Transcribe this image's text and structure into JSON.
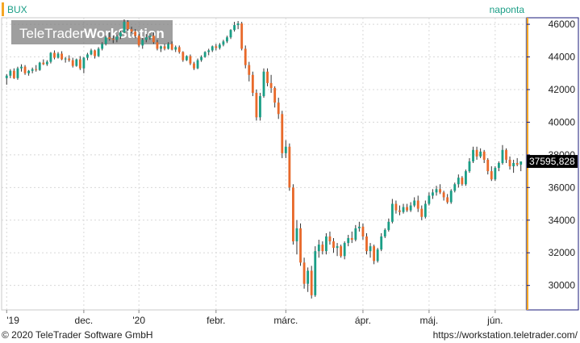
{
  "header": {
    "symbol": "BUX",
    "interval": "naponta"
  },
  "watermark": {
    "part1": "TeleTrader",
    "part2": "WorkStation"
  },
  "price_marker": {
    "label": "37595,828"
  },
  "footer": {
    "copyright": "© 2020 TeleTrader Software GmbH",
    "url": "https://workstation.teletrader.com/"
  },
  "colors": {
    "up": "#1a9e86",
    "down": "#e8692a",
    "wick": "#333333",
    "accent": "#f5a623",
    "axis_frame": "#1a1a7a",
    "marker_bg": "#000000"
  },
  "chart_data": {
    "type": "candlestick",
    "ylim": [
      28500,
      46400
    ],
    "yticks": [
      30000,
      32000,
      34000,
      36000,
      38000,
      40000,
      42000,
      44000,
      46000
    ],
    "ytick_labels": [
      "30000",
      "32000",
      "34000",
      "36000",
      "38000",
      "40000",
      "42000",
      "44000",
      "46000"
    ],
    "xticks": [
      {
        "label": "'19",
        "index": 0
      },
      {
        "label": "dec.",
        "index": 21
      },
      {
        "label": "'20",
        "index": 36
      },
      {
        "label": "febr.",
        "index": 57
      },
      {
        "label": "márc.",
        "index": 76
      },
      {
        "label": "ápr.",
        "index": 97
      },
      {
        "label": "máj.",
        "index": 115
      },
      {
        "label": "jún.",
        "index": 133
      }
    ],
    "grid": true,
    "last_value": 37595.828,
    "ohlc": [
      [
        42700,
        42950,
        42300,
        42850
      ],
      [
        42850,
        43250,
        42700,
        43150
      ],
      [
        43150,
        43300,
        42650,
        42700
      ],
      [
        42700,
        43400,
        42600,
        43300
      ],
      [
        43300,
        43550,
        43100,
        43400
      ],
      [
        43400,
        43500,
        42900,
        43000
      ],
      [
        43000,
        43200,
        42850,
        43150
      ],
      [
        43150,
        43350,
        43000,
        43250
      ],
      [
        43250,
        43500,
        43100,
        43200
      ],
      [
        43200,
        43700,
        43150,
        43650
      ],
      [
        43650,
        43850,
        43500,
        43550
      ],
      [
        43550,
        43800,
        43450,
        43700
      ],
      [
        43700,
        44300,
        43600,
        44250
      ],
      [
        44250,
        44400,
        43850,
        43950
      ],
      [
        43950,
        44300,
        43900,
        44200
      ],
      [
        44200,
        44350,
        43800,
        43850
      ],
      [
        43850,
        44000,
        43650,
        43900
      ],
      [
        43900,
        44100,
        43700,
        43800
      ],
      [
        43800,
        43950,
        43350,
        43450
      ],
      [
        43450,
        43900,
        43400,
        43850
      ],
      [
        43850,
        44050,
        43200,
        43300
      ],
      [
        43300,
        44000,
        43000,
        43950
      ],
      [
        43950,
        44250,
        43800,
        44150
      ],
      [
        44150,
        44500,
        44100,
        44400
      ],
      [
        44400,
        44450,
        43900,
        44050
      ],
      [
        44050,
        44600,
        44000,
        44500
      ],
      [
        44500,
        44900,
        44400,
        44800
      ],
      [
        44800,
        45300,
        44700,
        45200
      ],
      [
        45200,
        45500,
        45000,
        45100
      ],
      [
        45100,
        45300,
        44850,
        45050
      ],
      [
        45050,
        45350,
        44900,
        45250
      ],
      [
        45250,
        45600,
        45100,
        45500
      ],
      [
        45500,
        46300,
        45450,
        46150
      ],
      [
        46150,
        46250,
        45600,
        45700
      ],
      [
        45700,
        45850,
        45450,
        45550
      ],
      [
        45550,
        45700,
        45150,
        45300
      ],
      [
        45300,
        45400,
        44600,
        44700
      ],
      [
        44700,
        45150,
        44500,
        45050
      ],
      [
        45050,
        45400,
        44900,
        45200
      ],
      [
        45200,
        45450,
        45050,
        45300
      ],
      [
        45300,
        45500,
        44800,
        44900
      ],
      [
        44900,
        45050,
        44400,
        44500
      ],
      [
        44500,
        44700,
        44300,
        44650
      ],
      [
        44650,
        44800,
        44400,
        44500
      ],
      [
        44500,
        44900,
        44450,
        44800
      ],
      [
        44800,
        44950,
        44400,
        44450
      ],
      [
        44450,
        44700,
        44300,
        44600
      ],
      [
        44600,
        44700,
        44200,
        44300
      ],
      [
        44300,
        44350,
        43700,
        43800
      ],
      [
        43800,
        44100,
        43750,
        44050
      ],
      [
        44050,
        44150,
        43500,
        43600
      ],
      [
        43600,
        43700,
        43200,
        43300
      ],
      [
        43300,
        43900,
        43250,
        43800
      ],
      [
        43800,
        44100,
        43700,
        44000
      ],
      [
        44000,
        44350,
        43950,
        44300
      ],
      [
        44300,
        44500,
        44100,
        44400
      ],
      [
        44400,
        44700,
        44300,
        44650
      ],
      [
        44650,
        44800,
        44400,
        44550
      ],
      [
        44550,
        44850,
        44450,
        44750
      ],
      [
        44750,
        45050,
        44650,
        44950
      ],
      [
        44950,
        45300,
        44850,
        45200
      ],
      [
        45200,
        45700,
        45100,
        45650
      ],
      [
        45650,
        46150,
        45550,
        45950
      ],
      [
        45950,
        46200,
        45700,
        46050
      ],
      [
        46050,
        46150,
        44400,
        44500
      ],
      [
        44500,
        44700,
        43300,
        43500
      ],
      [
        43500,
        43700,
        42500,
        42900
      ],
      [
        42900,
        43100,
        41600,
        41800
      ],
      [
        41800,
        42000,
        40100,
        40300
      ],
      [
        40300,
        41800,
        40100,
        41600
      ],
      [
        41600,
        43300,
        41500,
        43100
      ],
      [
        43100,
        43300,
        42200,
        42400
      ],
      [
        42400,
        42900,
        41800,
        42100
      ],
      [
        42100,
        42200,
        40900,
        41200
      ],
      [
        41200,
        41500,
        40200,
        40500
      ],
      [
        40500,
        40700,
        37800,
        38100
      ],
      [
        38100,
        38900,
        37800,
        38500
      ],
      [
        38500,
        38700,
        35800,
        36000
      ],
      [
        36000,
        36200,
        32500,
        32700
      ],
      [
        32700,
        34000,
        31900,
        33500
      ],
      [
        33500,
        33800,
        31200,
        31400
      ],
      [
        31400,
        31700,
        29800,
        30100
      ],
      [
        30100,
        31100,
        29600,
        30900
      ],
      [
        30900,
        31200,
        29200,
        29400
      ],
      [
        29400,
        32400,
        29300,
        32100
      ],
      [
        32100,
        32800,
        31700,
        32500
      ],
      [
        32500,
        32700,
        31900,
        32100
      ],
      [
        32100,
        33200,
        31900,
        33000
      ],
      [
        33000,
        33300,
        32500,
        32700
      ],
      [
        32700,
        32900,
        32000,
        32300
      ],
      [
        32300,
        32600,
        31800,
        32400
      ],
      [
        32400,
        32500,
        31700,
        31800
      ],
      [
        31800,
        32700,
        31600,
        32600
      ],
      [
        32600,
        33100,
        32400,
        32900
      ],
      [
        32900,
        33300,
        32600,
        32800
      ],
      [
        32800,
        33700,
        32700,
        33500
      ],
      [
        33500,
        33900,
        33300,
        33600
      ],
      [
        33600,
        33800,
        32800,
        33000
      ],
      [
        33000,
        33200,
        31900,
        32100
      ],
      [
        32100,
        32600,
        31700,
        32400
      ],
      [
        32400,
        32500,
        31300,
        31500
      ],
      [
        31500,
        32300,
        31400,
        32200
      ],
      [
        32200,
        33200,
        32100,
        33000
      ],
      [
        33000,
        33500,
        32900,
        33400
      ],
      [
        33400,
        34100,
        33300,
        33900
      ],
      [
        33900,
        35300,
        33800,
        35000
      ],
      [
        35000,
        35200,
        34400,
        34600
      ],
      [
        34600,
        34900,
        34300,
        34500
      ],
      [
        34500,
        35000,
        34400,
        34800
      ],
      [
        34800,
        35000,
        34500,
        34600
      ],
      [
        34600,
        35100,
        34500,
        34900
      ],
      [
        34900,
        35400,
        34800,
        35200
      ],
      [
        35200,
        35500,
        34500,
        34700
      ],
      [
        34700,
        34900,
        34000,
        34200
      ],
      [
        34200,
        35200,
        34100,
        35000
      ],
      [
        35000,
        35700,
        34900,
        35500
      ],
      [
        35500,
        35900,
        35300,
        35700
      ],
      [
        35700,
        36100,
        35500,
        35900
      ],
      [
        35900,
        36200,
        35600,
        35700
      ],
      [
        35700,
        35800,
        35200,
        35400
      ],
      [
        35400,
        35600,
        35000,
        35100
      ],
      [
        35100,
        35900,
        35000,
        35800
      ],
      [
        35800,
        36300,
        35700,
        36200
      ],
      [
        36200,
        36800,
        36000,
        36600
      ],
      [
        36600,
        36700,
        36100,
        36200
      ],
      [
        36200,
        37100,
        36100,
        37000
      ],
      [
        37000,
        37800,
        36900,
        37600
      ],
      [
        37600,
        38500,
        37500,
        38300
      ],
      [
        38300,
        38500,
        37700,
        37900
      ],
      [
        37900,
        38400,
        37800,
        38200
      ],
      [
        38200,
        38300,
        37500,
        37700
      ],
      [
        37700,
        37800,
        36800,
        37000
      ],
      [
        37000,
        37300,
        36400,
        36500
      ],
      [
        36500,
        37300,
        36400,
        37200
      ],
      [
        37200,
        37600,
        37000,
        37500
      ],
      [
        37500,
        38600,
        37400,
        38300
      ],
      [
        38300,
        38400,
        37500,
        37700
      ],
      [
        37700,
        37900,
        37100,
        37300
      ],
      [
        37300,
        37700,
        36900,
        37500
      ],
      [
        37500,
        37800,
        37300,
        37400
      ],
      [
        37400,
        37600,
        37000,
        37596
      ]
    ]
  }
}
